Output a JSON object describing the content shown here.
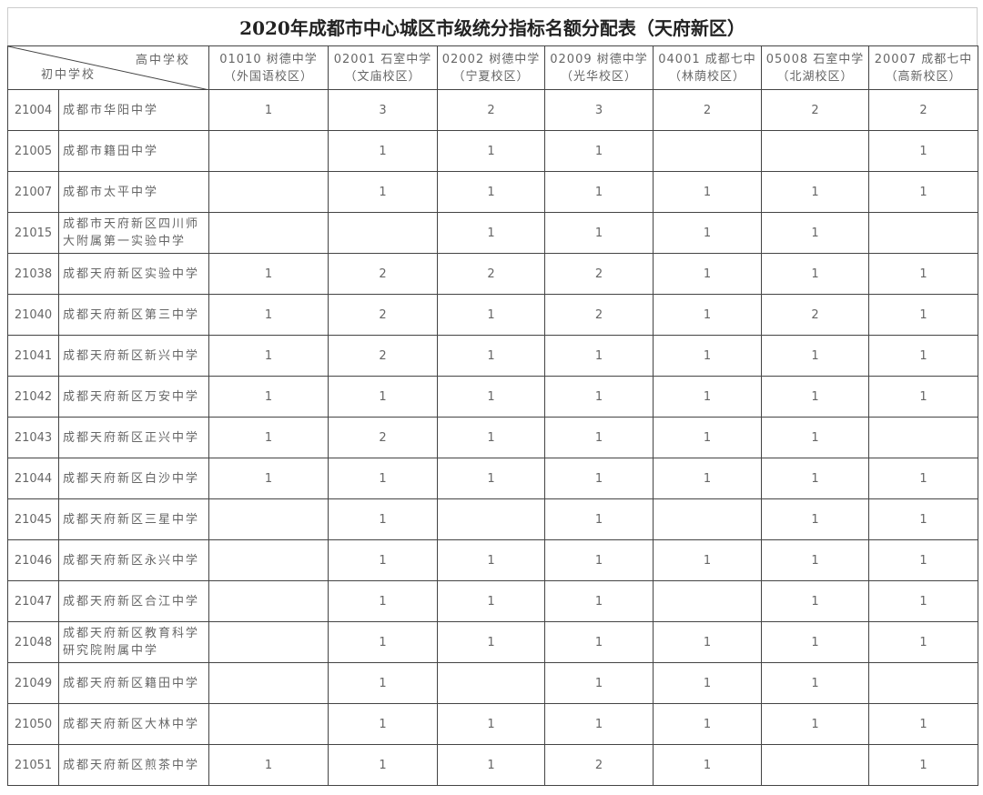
{
  "title": "2020年成都市中心城区市级统分指标名额分配表（天府新区）",
  "corner": {
    "high_school": "高中学校",
    "junior_school": "初中学校"
  },
  "columns": [
    {
      "line1": "01010 树德中学",
      "line2": "（外国语校区）"
    },
    {
      "line1": "02001 石室中学",
      "line2": "（文庙校区）"
    },
    {
      "line1": "02002 树德中学",
      "line2": "（宁夏校区）"
    },
    {
      "line1": "02009 树德中学",
      "line2": "（光华校区）"
    },
    {
      "line1": "04001 成都七中",
      "line2": "（林荫校区）"
    },
    {
      "line1": "05008 石室中学",
      "line2": "（北湖校区）"
    },
    {
      "line1": "20007 成都七中",
      "line2": "（高新校区）"
    }
  ],
  "rows": [
    {
      "code": "21004",
      "name": "成都市华阳中学",
      "values": [
        "1",
        "3",
        "2",
        "3",
        "2",
        "2",
        "2"
      ]
    },
    {
      "code": "21005",
      "name": "成都市籍田中学",
      "values": [
        "",
        "1",
        "1",
        "1",
        "",
        "",
        "1"
      ]
    },
    {
      "code": "21007",
      "name": "成都市太平中学",
      "values": [
        "",
        "1",
        "1",
        "1",
        "1",
        "1",
        "1"
      ]
    },
    {
      "code": "21015",
      "name": "成都市天府新区四川师大附属第一实验中学",
      "values": [
        "",
        "",
        "1",
        "1",
        "1",
        "1",
        ""
      ]
    },
    {
      "code": "21038",
      "name": "成都天府新区实验中学",
      "values": [
        "1",
        "2",
        "2",
        "2",
        "1",
        "1",
        "1"
      ]
    },
    {
      "code": "21040",
      "name": "成都天府新区第三中学",
      "values": [
        "1",
        "2",
        "1",
        "2",
        "1",
        "2",
        "1"
      ]
    },
    {
      "code": "21041",
      "name": "成都天府新区新兴中学",
      "values": [
        "1",
        "2",
        "1",
        "1",
        "1",
        "1",
        "1"
      ]
    },
    {
      "code": "21042",
      "name": "成都天府新区万安中学",
      "values": [
        "1",
        "1",
        "1",
        "1",
        "1",
        "1",
        "1"
      ]
    },
    {
      "code": "21043",
      "name": "成都天府新区正兴中学",
      "values": [
        "1",
        "2",
        "1",
        "1",
        "1",
        "1",
        ""
      ]
    },
    {
      "code": "21044",
      "name": "成都天府新区白沙中学",
      "values": [
        "1",
        "1",
        "1",
        "1",
        "1",
        "1",
        "1"
      ]
    },
    {
      "code": "21045",
      "name": "成都天府新区三星中学",
      "values": [
        "",
        "1",
        "",
        "1",
        "",
        "1",
        "1"
      ]
    },
    {
      "code": "21046",
      "name": "成都天府新区永兴中学",
      "values": [
        "",
        "1",
        "1",
        "1",
        "1",
        "1",
        "1"
      ]
    },
    {
      "code": "21047",
      "name": "成都天府新区合江中学",
      "values": [
        "",
        "1",
        "1",
        "1",
        "",
        "1",
        "1"
      ]
    },
    {
      "code": "21048",
      "name": "成都天府新区教育科学研究院附属中学",
      "values": [
        "",
        "1",
        "1",
        "1",
        "1",
        "1",
        "1"
      ]
    },
    {
      "code": "21049",
      "name": "成都天府新区籍田中学",
      "values": [
        "",
        "1",
        "",
        "1",
        "1",
        "1",
        ""
      ]
    },
    {
      "code": "21050",
      "name": "成都天府新区大林中学",
      "values": [
        "",
        "1",
        "1",
        "1",
        "1",
        "1",
        "1"
      ]
    },
    {
      "code": "21051",
      "name": "成都天府新区煎茶中学",
      "values": [
        "1",
        "1",
        "1",
        "2",
        "1",
        "",
        "1"
      ]
    }
  ]
}
